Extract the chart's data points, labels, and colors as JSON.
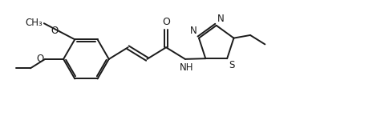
{
  "background": "#ffffff",
  "line_color": "#1a1a1a",
  "line_width": 1.4,
  "font_size": 8.5,
  "fig_width": 4.8,
  "fig_height": 1.45,
  "dpi": 100,
  "xlim": [
    0,
    10.5
  ],
  "ylim": [
    0,
    3.1
  ]
}
